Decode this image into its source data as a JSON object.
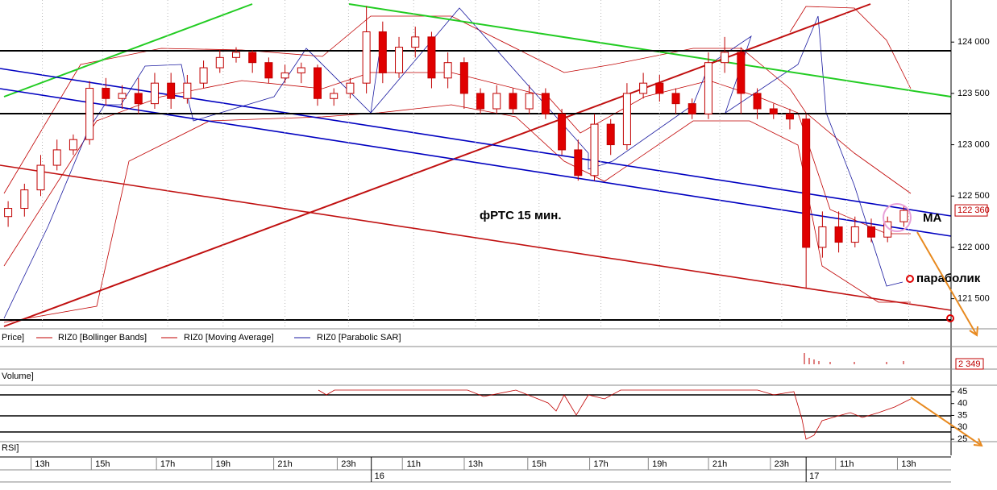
{
  "chart_data": {
    "type": "candlestick",
    "title": "фРТС   15 мин.",
    "annotations": [
      "МА",
      "параболик"
    ],
    "legend": [
      "Price]",
      "RIZ0 [Bollinger Bands]",
      "RIZ0 [Moving Average]",
      "RIZ0 [Parabolic SAR]"
    ],
    "volume_label": "Volume]",
    "volume_last": "2 349",
    "rsi_label": "RSI]",
    "last_price": {
      "value": 122360,
      "label": "122 360"
    },
    "up_color": "#ffffff",
    "down_color": "#e00000",
    "edge_color": "#c00000",
    "x": [
      0,
      1,
      2,
      3,
      4,
      5,
      6,
      7,
      8,
      9,
      10,
      11,
      12,
      13,
      14,
      15,
      16,
      17,
      18,
      19,
      20,
      21,
      22,
      23,
      24,
      25,
      26,
      27,
      28,
      29,
      30,
      31,
      32,
      33,
      34,
      35,
      36,
      37,
      38,
      39,
      40,
      41,
      42,
      43,
      44,
      45,
      46,
      47,
      48,
      49,
      50,
      51,
      52,
      53,
      54,
      55
    ],
    "open": [
      122300,
      122380,
      122560,
      122800,
      122950,
      123050,
      123550,
      123450,
      123500,
      123400,
      123600,
      123450,
      123600,
      123750,
      123850,
      123900,
      123800,
      123650,
      123700,
      123750,
      123450,
      123500,
      123600,
      124100,
      123700,
      123950,
      124050,
      123650,
      123800,
      123500,
      123350,
      123500,
      123350,
      123500,
      123300,
      122950,
      122700,
      123200,
      123000,
      123500,
      123600,
      123500,
      123400,
      123300,
      123800,
      123900,
      123500,
      123350,
      123300,
      123250,
      122000,
      122200,
      122050,
      122200,
      122100,
      122250
    ],
    "high": [
      122450,
      122620,
      122900,
      123050,
      123100,
      123620,
      123650,
      123580,
      123650,
      123700,
      123700,
      123680,
      123820,
      123920,
      123950,
      123920,
      123850,
      123780,
      123800,
      123780,
      123550,
      123650,
      124350,
      124200,
      124050,
      124150,
      124100,
      123900,
      123850,
      123550,
      123580,
      123550,
      123580,
      123550,
      123350,
      123050,
      123300,
      123250,
      123600,
      123700,
      123680,
      123550,
      123450,
      123900,
      124050,
      123950,
      123550,
      123400,
      123350,
      123300,
      122350,
      122350,
      122300,
      122280,
      122300,
      122400
    ],
    "low": [
      122200,
      122300,
      122500,
      122750,
      122900,
      123000,
      123380,
      123350,
      123300,
      123350,
      123350,
      123400,
      123550,
      123700,
      123800,
      123700,
      123600,
      123600,
      123600,
      123380,
      123380,
      123450,
      123500,
      123600,
      123650,
      123850,
      123550,
      123550,
      123350,
      123300,
      123300,
      123300,
      123300,
      123250,
      122900,
      122650,
      122650,
      122900,
      122950,
      123450,
      123420,
      123300,
      123250,
      123250,
      123700,
      123300,
      123250,
      123250,
      123150,
      121600,
      121900,
      121950,
      122000,
      122050,
      122050,
      122200
    ],
    "close": [
      122380,
      122560,
      122800,
      122950,
      123050,
      123550,
      123450,
      123500,
      123400,
      123600,
      123450,
      123600,
      123750,
      123850,
      123900,
      123800,
      123650,
      123700,
      123750,
      123450,
      123500,
      123600,
      124100,
      123700,
      123950,
      124050,
      123650,
      123800,
      123500,
      123350,
      123500,
      123350,
      123500,
      123300,
      122950,
      122700,
      123200,
      123000,
      123500,
      123600,
      123500,
      123400,
      123300,
      123800,
      123900,
      123500,
      123350,
      123300,
      123250,
      122000,
      122200,
      122050,
      122200,
      122100,
      122250,
      122360
    ],
    "ylim": [
      121230,
      124410
    ],
    "yticks": [
      {
        "value": 121500,
        "label": "121 500"
      },
      {
        "value": 122000,
        "label": "122 000"
      },
      {
        "value": 122500,
        "label": "122 500"
      },
      {
        "value": 123000,
        "label": "123 000"
      },
      {
        "value": 123500,
        "label": "123 500"
      },
      {
        "value": 124000,
        "label": "124 000"
      }
    ],
    "xlim": [
      -0.5,
      57.9
    ],
    "xticks": [
      {
        "value": 2.1,
        "label": "13h"
      },
      {
        "value": 5.8,
        "label": "15h"
      },
      {
        "value": 9.8,
        "label": "17h"
      },
      {
        "value": 13.2,
        "label": "19h"
      },
      {
        "value": 17,
        "label": "21h"
      },
      {
        "value": 20.9,
        "label": "23h"
      },
      {
        "value": 24.9,
        "label": "11h"
      },
      {
        "value": 28.7,
        "label": "13h"
      },
      {
        "value": 32.6,
        "label": "15h"
      },
      {
        "value": 36.4,
        "label": "17h"
      },
      {
        "value": 40,
        "label": "19h"
      },
      {
        "value": 43.7,
        "label": "21h"
      },
      {
        "value": 47.5,
        "label": "23h"
      },
      {
        "value": 51.5,
        "label": "11h"
      },
      {
        "value": 55.3,
        "label": "13h"
      }
    ],
    "days": [
      {
        "value": 22.3,
        "label": "16"
      },
      {
        "value": 49,
        "label": "17"
      }
    ],
    "rsi_ylim": [
      24,
      47
    ],
    "rsi_yticks": [
      25,
      30,
      35,
      40,
      45
    ]
  }
}
